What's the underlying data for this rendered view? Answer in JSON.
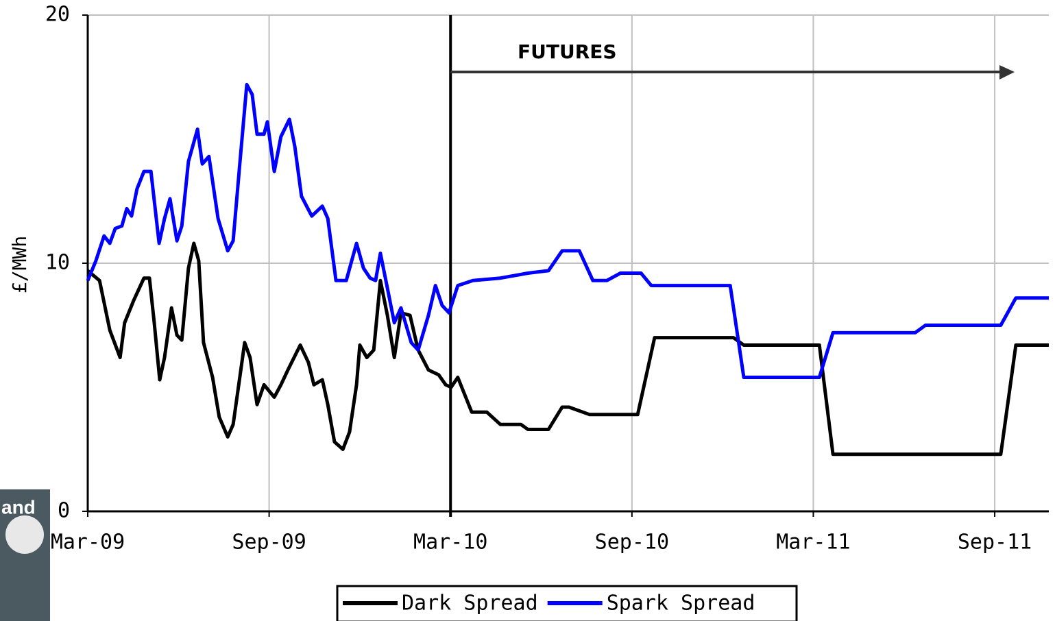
{
  "chart_data": {
    "type": "line",
    "y_label": "£/MWh",
    "annotation": {
      "text": "FUTURES",
      "x": 12
    },
    "overlay_text": "and",
    "xlim": [
      0,
      31.79
    ],
    "xticks": [
      {
        "value": 0,
        "label": "Mar-09"
      },
      {
        "value": 6,
        "label": "Sep-09"
      },
      {
        "value": 12,
        "label": "Mar-10"
      },
      {
        "value": 18,
        "label": "Sep-10"
      },
      {
        "value": 24,
        "label": "Mar-11"
      },
      {
        "value": 30,
        "label": "Sep-11"
      }
    ],
    "ylim": [
      0,
      20
    ],
    "yticks": [
      0,
      10,
      20
    ],
    "grid": true,
    "legend": "bottom",
    "series": [
      {
        "name": "Dark Spread",
        "color": "#000000",
        "x": [
          0,
          0.39,
          0.73,
          1.07,
          1.22,
          1.52,
          1.86,
          2.04,
          2.2,
          2.38,
          2.54,
          2.77,
          2.95,
          3.11,
          3.33,
          3.51,
          3.67,
          3.83,
          4.13,
          4.35,
          4.63,
          4.81,
          5.03,
          5.19,
          5.37,
          5.6,
          5.83,
          6.17,
          6.39,
          6.62,
          7.03,
          7.3,
          7.48,
          7.76,
          7.94,
          8.16,
          8.44,
          8.66,
          8.89,
          9.0,
          9.23,
          9.46,
          9.68,
          9.91,
          10.14,
          10.36,
          10.66,
          10.93,
          11.27,
          11.61,
          11.84,
          12.02,
          12.24,
          12.7,
          13.2,
          13.65,
          14.33,
          14.56,
          15.24,
          15.69,
          15.92,
          16.6,
          18.19,
          18.75,
          21.36,
          21.7,
          24.2,
          24.65,
          30.2,
          30.7,
          31.79
        ],
        "values": [
          9.7,
          9.3,
          7.3,
          6.2,
          7.6,
          8.5,
          9.4,
          9.4,
          7.6,
          5.3,
          6.2,
          8.2,
          7.1,
          6.9,
          9.8,
          10.8,
          10.1,
          6.8,
          5.4,
          3.8,
          3.0,
          3.5,
          5.4,
          6.8,
          6.2,
          4.3,
          5.1,
          4.6,
          5.1,
          5.7,
          6.7,
          6.0,
          5.1,
          5.3,
          4.3,
          2.8,
          2.5,
          3.2,
          5.1,
          6.7,
          6.2,
          6.5,
          9.3,
          7.9,
          6.2,
          8.0,
          7.9,
          6.5,
          5.7,
          5.5,
          5.1,
          5.0,
          5.4,
          4.0,
          4.0,
          3.5,
          3.5,
          3.3,
          3.3,
          4.2,
          4.2,
          3.9,
          3.9,
          7.0,
          7.0,
          6.7,
          6.7,
          2.3,
          2.3,
          6.7,
          6.7
        ]
      },
      {
        "name": "Spark Spread",
        "color": "#0000ff",
        "x": [
          0,
          0.27,
          0.54,
          0.73,
          0.91,
          1.13,
          1.29,
          1.45,
          1.63,
          1.86,
          2.09,
          2.36,
          2.54,
          2.72,
          2.95,
          3.11,
          3.33,
          3.63,
          3.79,
          4.01,
          4.31,
          4.63,
          4.81,
          5.03,
          5.26,
          5.44,
          5.6,
          5.83,
          5.94,
          6.17,
          6.39,
          6.67,
          6.85,
          7.07,
          7.41,
          7.76,
          7.94,
          8.21,
          8.55,
          8.89,
          9.12,
          9.34,
          9.52,
          9.68,
          9.91,
          10.14,
          10.36,
          10.7,
          10.93,
          11.27,
          11.5,
          11.72,
          11.95,
          12.24,
          12.74,
          13.65,
          14.56,
          15.24,
          15.69,
          16.26,
          16.71,
          17.17,
          17.62,
          18.3,
          18.64,
          21.25,
          21.7,
          24.2,
          24.65,
          27.37,
          27.71,
          30.2,
          30.7,
          31.79
        ],
        "values": [
          9.3,
          10.1,
          11.1,
          10.8,
          11.4,
          11.5,
          12.2,
          11.9,
          13.0,
          13.7,
          13.7,
          10.8,
          11.8,
          12.6,
          10.9,
          11.5,
          14.1,
          15.4,
          14.0,
          14.3,
          11.8,
          10.5,
          10.9,
          14.0,
          17.2,
          16.8,
          15.2,
          15.2,
          15.7,
          13.7,
          15.1,
          15.8,
          14.7,
          12.7,
          11.9,
          12.3,
          11.8,
          9.3,
          9.3,
          10.8,
          9.8,
          9.4,
          9.3,
          10.4,
          9.0,
          7.6,
          8.2,
          6.8,
          6.5,
          7.9,
          9.1,
          8.3,
          8.0,
          9.1,
          9.3,
          9.4,
          9.6,
          9.7,
          10.5,
          10.5,
          9.3,
          9.3,
          9.6,
          9.6,
          9.1,
          9.1,
          5.4,
          5.4,
          7.2,
          7.2,
          7.5,
          7.5,
          8.6,
          8.6
        ]
      }
    ]
  }
}
